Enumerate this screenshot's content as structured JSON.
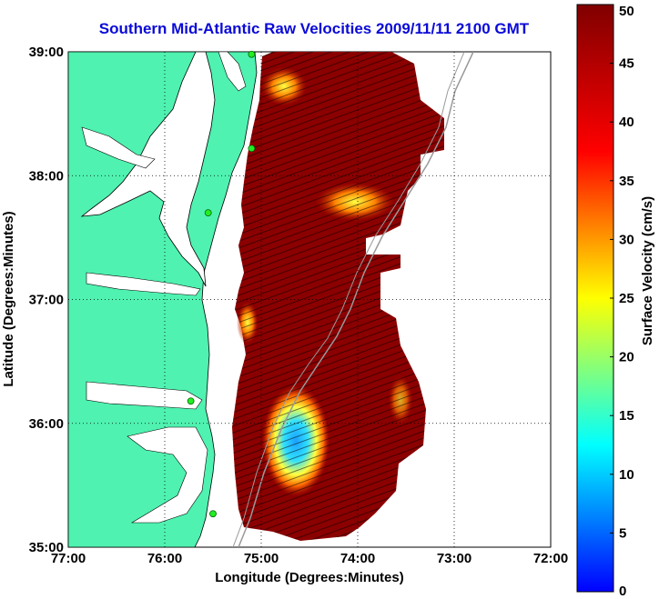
{
  "title": "Southern Mid-Atlantic Raw Velocities 2009/11/11 2100 GMT",
  "map": {
    "xlabel": "Longitude (Degrees:Minutes)",
    "ylabel": "Latitude (Degrees:Minutes)",
    "x_ticks": [
      "77:00",
      "76:00",
      "75:00",
      "74:00",
      "73:00",
      "72:00"
    ],
    "y_ticks": [
      "39:00",
      "38:00",
      "37:00",
      "36:00",
      "35:00"
    ],
    "lon_range": [
      -77,
      -72
    ],
    "lat_range": [
      35,
      39
    ],
    "land_color": "#4ff2b0",
    "velocity_field_color": "#8b0000",
    "stations": [
      {
        "lon": -75.1,
        "lat": 38.98
      },
      {
        "lon": -75.1,
        "lat": 38.22
      },
      {
        "lon": -75.55,
        "lat": 37.7
      },
      {
        "lon": -75.73,
        "lat": 36.18
      },
      {
        "lon": -75.5,
        "lat": 35.27
      }
    ]
  },
  "colorbar": {
    "label": "Surface Velocity (cm/s)",
    "ticks": [
      "50",
      "45",
      "40",
      "35",
      "30",
      "25",
      "20",
      "15",
      "10",
      "5",
      "0"
    ],
    "range": [
      0,
      50
    ],
    "stops": [
      "#0000ff",
      "#00ffff",
      "#ffff00",
      "#ff0000",
      "#800000"
    ]
  }
}
